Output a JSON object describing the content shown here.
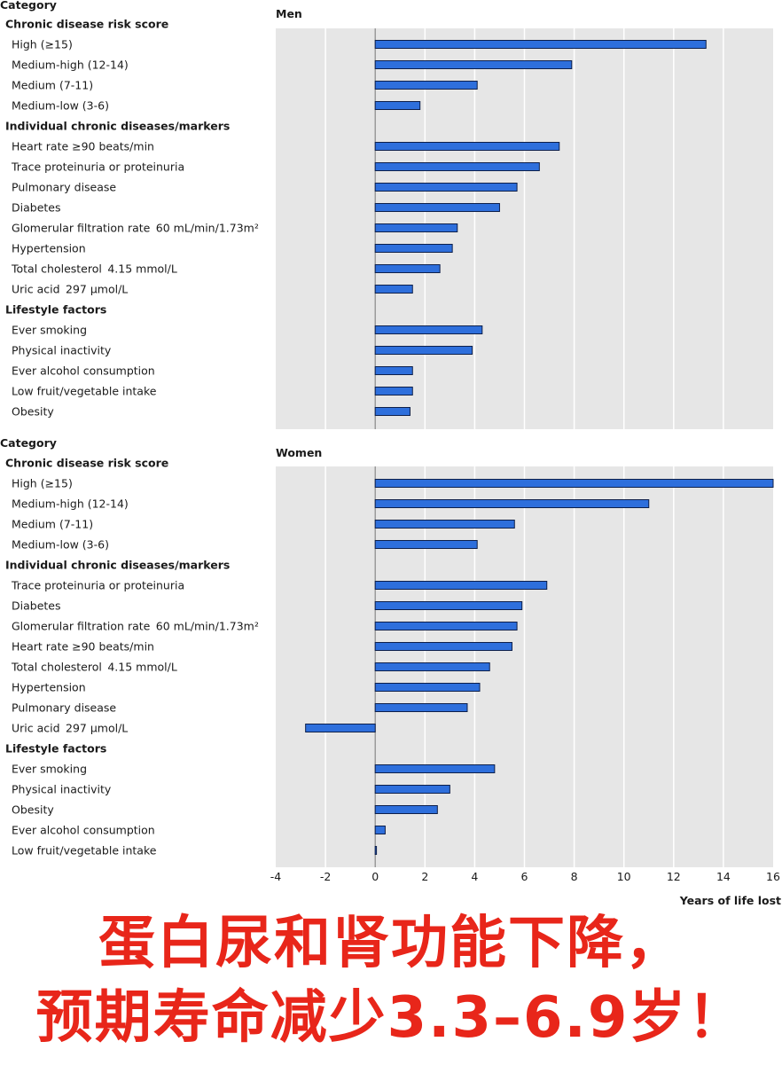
{
  "chart_data": [
    {
      "type": "bar",
      "orientation": "horizontal",
      "title": "Men",
      "category_header": "Category",
      "xlabel": "Years of life lost",
      "xlim": [
        -4,
        16
      ],
      "xticks": [
        "-4",
        "-2",
        "0",
        "2",
        "4",
        "6",
        "8",
        "10",
        "12",
        "14",
        "16"
      ],
      "groups": [
        {
          "name": "Chronic disease risk score",
          "items": [
            {
              "label": "High (≥15)",
              "value": 13.3
            },
            {
              "label": "Medium-high (12-14)",
              "value": 7.9
            },
            {
              "label": "Medium (7-11)",
              "value": 4.1
            },
            {
              "label": "Medium-low (3-6)",
              "value": 1.8
            }
          ]
        },
        {
          "name": "Individual chronic diseases/markers",
          "items": [
            {
              "label": "Heart rate ≥90 beats/min",
              "value": 7.4
            },
            {
              "label": "Trace proteinuria or proteinuria",
              "value": 6.6
            },
            {
              "label": "Pulmonary disease",
              "value": 5.7
            },
            {
              "label": "Diabetes",
              "value": 5.0
            },
            {
              "label": "Glomerular filtration rate  60 mL/min/1.73m²",
              "value": 3.3
            },
            {
              "label": "Hypertension",
              "value": 3.1
            },
            {
              "label": "Total cholesterol  4.15 mmol/L",
              "value": 2.6
            },
            {
              "label": "Uric acid  297 µmol/L",
              "value": 1.5
            }
          ]
        },
        {
          "name": "Lifestyle factors",
          "items": [
            {
              "label": "Ever smoking",
              "value": 4.3
            },
            {
              "label": "Physical inactivity",
              "value": 3.9
            },
            {
              "label": "Ever alcohol consumption",
              "value": 1.5
            },
            {
              "label": "Low fruit/vegetable intake",
              "value": 1.5
            },
            {
              "label": "Obesity",
              "value": 1.4
            }
          ]
        }
      ]
    },
    {
      "type": "bar",
      "orientation": "horizontal",
      "title": "Women",
      "category_header": "Category",
      "xlabel": "Years of life lost",
      "xlim": [
        -4,
        16
      ],
      "xticks": [
        "-4",
        "-2",
        "0",
        "2",
        "4",
        "6",
        "8",
        "10",
        "12",
        "14",
        "16"
      ],
      "groups": [
        {
          "name": "Chronic disease risk score",
          "items": [
            {
              "label": "High (≥15)",
              "value": 16.0
            },
            {
              "label": "Medium-high (12-14)",
              "value": 11.0
            },
            {
              "label": "Medium (7-11)",
              "value": 5.6
            },
            {
              "label": "Medium-low (3-6)",
              "value": 4.1
            }
          ]
        },
        {
          "name": "Individual chronic diseases/markers",
          "items": [
            {
              "label": "Trace proteinuria or proteinuria",
              "value": 6.9
            },
            {
              "label": "Diabetes",
              "value": 5.9
            },
            {
              "label": "Glomerular filtration rate  60 mL/min/1.73m²",
              "value": 5.7
            },
            {
              "label": "Heart rate ≥90 beats/min",
              "value": 5.5
            },
            {
              "label": "Total cholesterol  4.15 mmol/L",
              "value": 4.6
            },
            {
              "label": "Hypertension",
              "value": 4.2
            },
            {
              "label": "Pulmonary disease",
              "value": 3.7
            },
            {
              "label": "Uric acid  297 µmol/L",
              "value": -2.8
            }
          ]
        },
        {
          "name": "Lifestyle factors",
          "items": [
            {
              "label": "Ever smoking",
              "value": 4.8
            },
            {
              "label": "Physical inactivity",
              "value": 3.0
            },
            {
              "label": "Obesity",
              "value": 2.5
            },
            {
              "label": "Ever alcohol consumption",
              "value": 0.4
            },
            {
              "label": "Low fruit/vegetable intake",
              "value": 0.05
            }
          ]
        }
      ]
    }
  ],
  "colors": {
    "bar_fill": "#2e6fdc",
    "bar_stroke": "#0d1f4a",
    "plot_bg": "#e6e6e6",
    "grid": "#ffffff",
    "zero_line": "#888888",
    "headline": "#e8261a"
  },
  "headline": {
    "line1": "蛋白尿和肾功能下降，",
    "line2": "预期寿命减少3.3–6.9岁！"
  }
}
